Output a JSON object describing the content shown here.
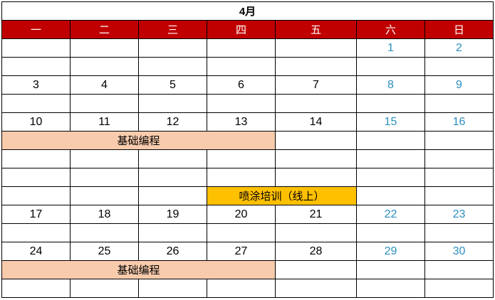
{
  "title": "4月",
  "weekdays": [
    "一",
    "二",
    "三",
    "四",
    "五",
    "六",
    "日"
  ],
  "colors": {
    "header_bg": "#C00000",
    "weekend_text": "#2B8FBF",
    "basic_programming": "#F8CBAD",
    "spray_training": "#FFC000"
  },
  "rows": [
    {
      "type": "dates",
      "cells": [
        "",
        "",
        "",
        "",
        "",
        "1",
        "2"
      ]
    },
    {
      "type": "blank"
    },
    {
      "type": "dates",
      "cells": [
        "3",
        "4",
        "5",
        "6",
        "7",
        "8",
        "9"
      ]
    },
    {
      "type": "blank"
    },
    {
      "type": "dates",
      "cells": [
        "10",
        "11",
        "12",
        "13",
        "14",
        "15",
        "16"
      ]
    },
    {
      "type": "event",
      "start": 0,
      "span": 4,
      "label": "基础编程",
      "style": "ev-basic"
    },
    {
      "type": "blank"
    },
    {
      "type": "blank"
    },
    {
      "type": "event",
      "start": 3,
      "span": 2,
      "label": "喷涂培训（线上）",
      "style": "ev-spray"
    },
    {
      "type": "dates",
      "cells": [
        "17",
        "18",
        "19",
        "20",
        "21",
        "22",
        "23"
      ]
    },
    {
      "type": "blank"
    },
    {
      "type": "dates",
      "cells": [
        "24",
        "25",
        "26",
        "27",
        "28",
        "29",
        "30"
      ]
    },
    {
      "type": "event",
      "start": 0,
      "span": 4,
      "label": "基础编程",
      "style": "ev-basic"
    },
    {
      "type": "blank"
    }
  ]
}
